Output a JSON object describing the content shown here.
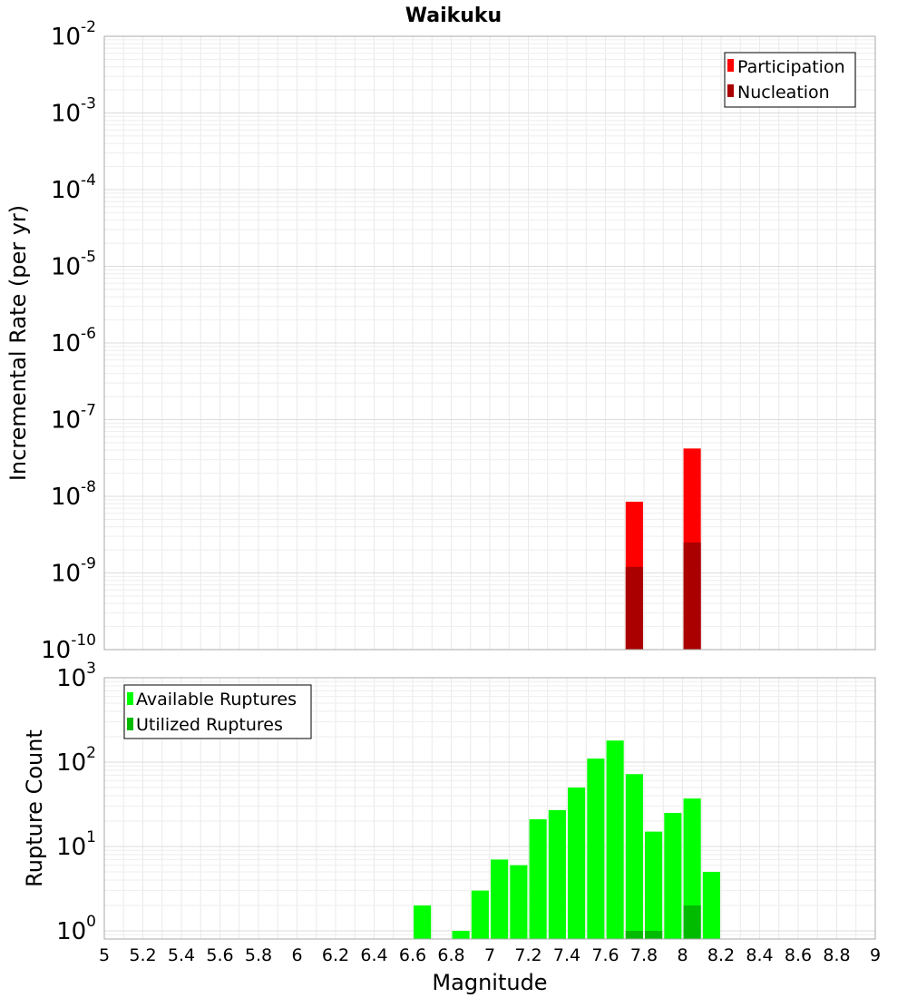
{
  "chart_data": [
    {
      "type": "bar",
      "title": "Waikuku",
      "ylabel": "Incremental Rate (per yr)",
      "xlim": [
        5,
        9
      ],
      "ylim": [
        1e-10,
        0.01
      ],
      "yscale": "log",
      "grid": true,
      "legend_position": "top-right",
      "bar_width": 0.09,
      "y_tick_labels": [
        {
          "base": "10",
          "exp": "-2"
        },
        {
          "base": "10",
          "exp": "-3"
        },
        {
          "base": "10",
          "exp": "-4"
        },
        {
          "base": "10",
          "exp": "-5"
        },
        {
          "base": "10",
          "exp": "-6"
        },
        {
          "base": "10",
          "exp": "-7"
        },
        {
          "base": "10",
          "exp": "-8"
        },
        {
          "base": "10",
          "exp": "-9"
        },
        {
          "base": "10",
          "exp": "-10"
        }
      ],
      "series": [
        {
          "name": "Participation",
          "color": "#ff0000",
          "x": [
            7.75,
            8.05
          ],
          "values": [
            8.5e-09,
            4.2e-08
          ]
        },
        {
          "name": "Nucleation",
          "color": "#aa0000",
          "x": [
            7.75,
            8.05
          ],
          "values": [
            1.2e-09,
            2.5e-09
          ]
        }
      ]
    },
    {
      "type": "bar",
      "xlabel": "Magnitude",
      "ylabel": "Rupture Count",
      "xlim": [
        5,
        9
      ],
      "ylim": [
        0.8,
        1000
      ],
      "yscale": "log",
      "grid": true,
      "legend_position": "top-left",
      "bar_width": 0.09,
      "x_tick_labels": [
        "5",
        "5.2",
        "5.4",
        "5.6",
        "5.8",
        "6",
        "6.2",
        "6.4",
        "6.6",
        "6.8",
        "7",
        "7.2",
        "7.4",
        "7.6",
        "7.8",
        "8",
        "8.2",
        "8.4",
        "8.6",
        "8.8",
        "9"
      ],
      "y_tick_labels": [
        {
          "base": "10",
          "exp": "3"
        },
        {
          "base": "10",
          "exp": "2"
        },
        {
          "base": "10",
          "exp": "1"
        },
        {
          "base": "10",
          "exp": "0"
        }
      ],
      "series": [
        {
          "name": "Available Ruptures",
          "color": "#00ff00",
          "x": [
            6.65,
            6.85,
            6.95,
            7.05,
            7.15,
            7.25,
            7.35,
            7.45,
            7.55,
            7.65,
            7.75,
            7.85,
            7.95,
            8.05,
            8.15
          ],
          "values": [
            2,
            1,
            3,
            7,
            6,
            21,
            27,
            50,
            110,
            180,
            72,
            15,
            25,
            37,
            5
          ]
        },
        {
          "name": "Utilized Ruptures",
          "color": "#00bb00",
          "x": [
            7.75,
            7.85,
            8.05
          ],
          "values": [
            1,
            1,
            2
          ]
        }
      ]
    }
  ]
}
